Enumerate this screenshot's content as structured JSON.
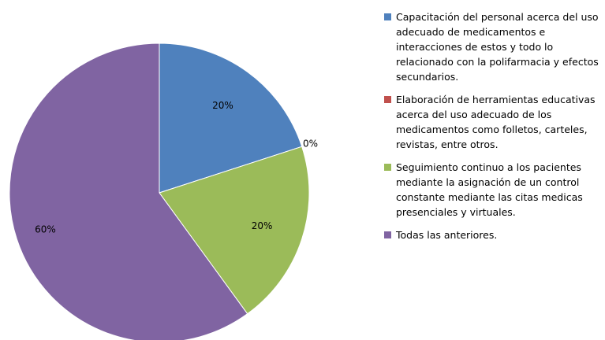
{
  "chart_data": {
    "type": "pie",
    "categories": [
      "Capacitación del personal acerca del uso adecuado de medicamentos e interacciones de estos y todo lo relacionado con la polifarmacia y efectos secundarios.",
      "Elaboración de herramientas educativas acerca del uso adecuado de los medicamentos como folletos, carteles, revistas, entre otros.",
      "Seguimiento continuo a los pacientes mediante la asignación de un control constante mediante las citas medicas presenciales y virtuales.",
      "Todas las anteriores."
    ],
    "values": [
      20,
      0,
      20,
      60
    ],
    "value_labels": [
      "20%",
      "0%",
      "20%",
      "60%"
    ],
    "colors": [
      "#4f81bd",
      "#c0504d",
      "#9bbb59",
      "#8064a2"
    ],
    "legend": "right"
  }
}
